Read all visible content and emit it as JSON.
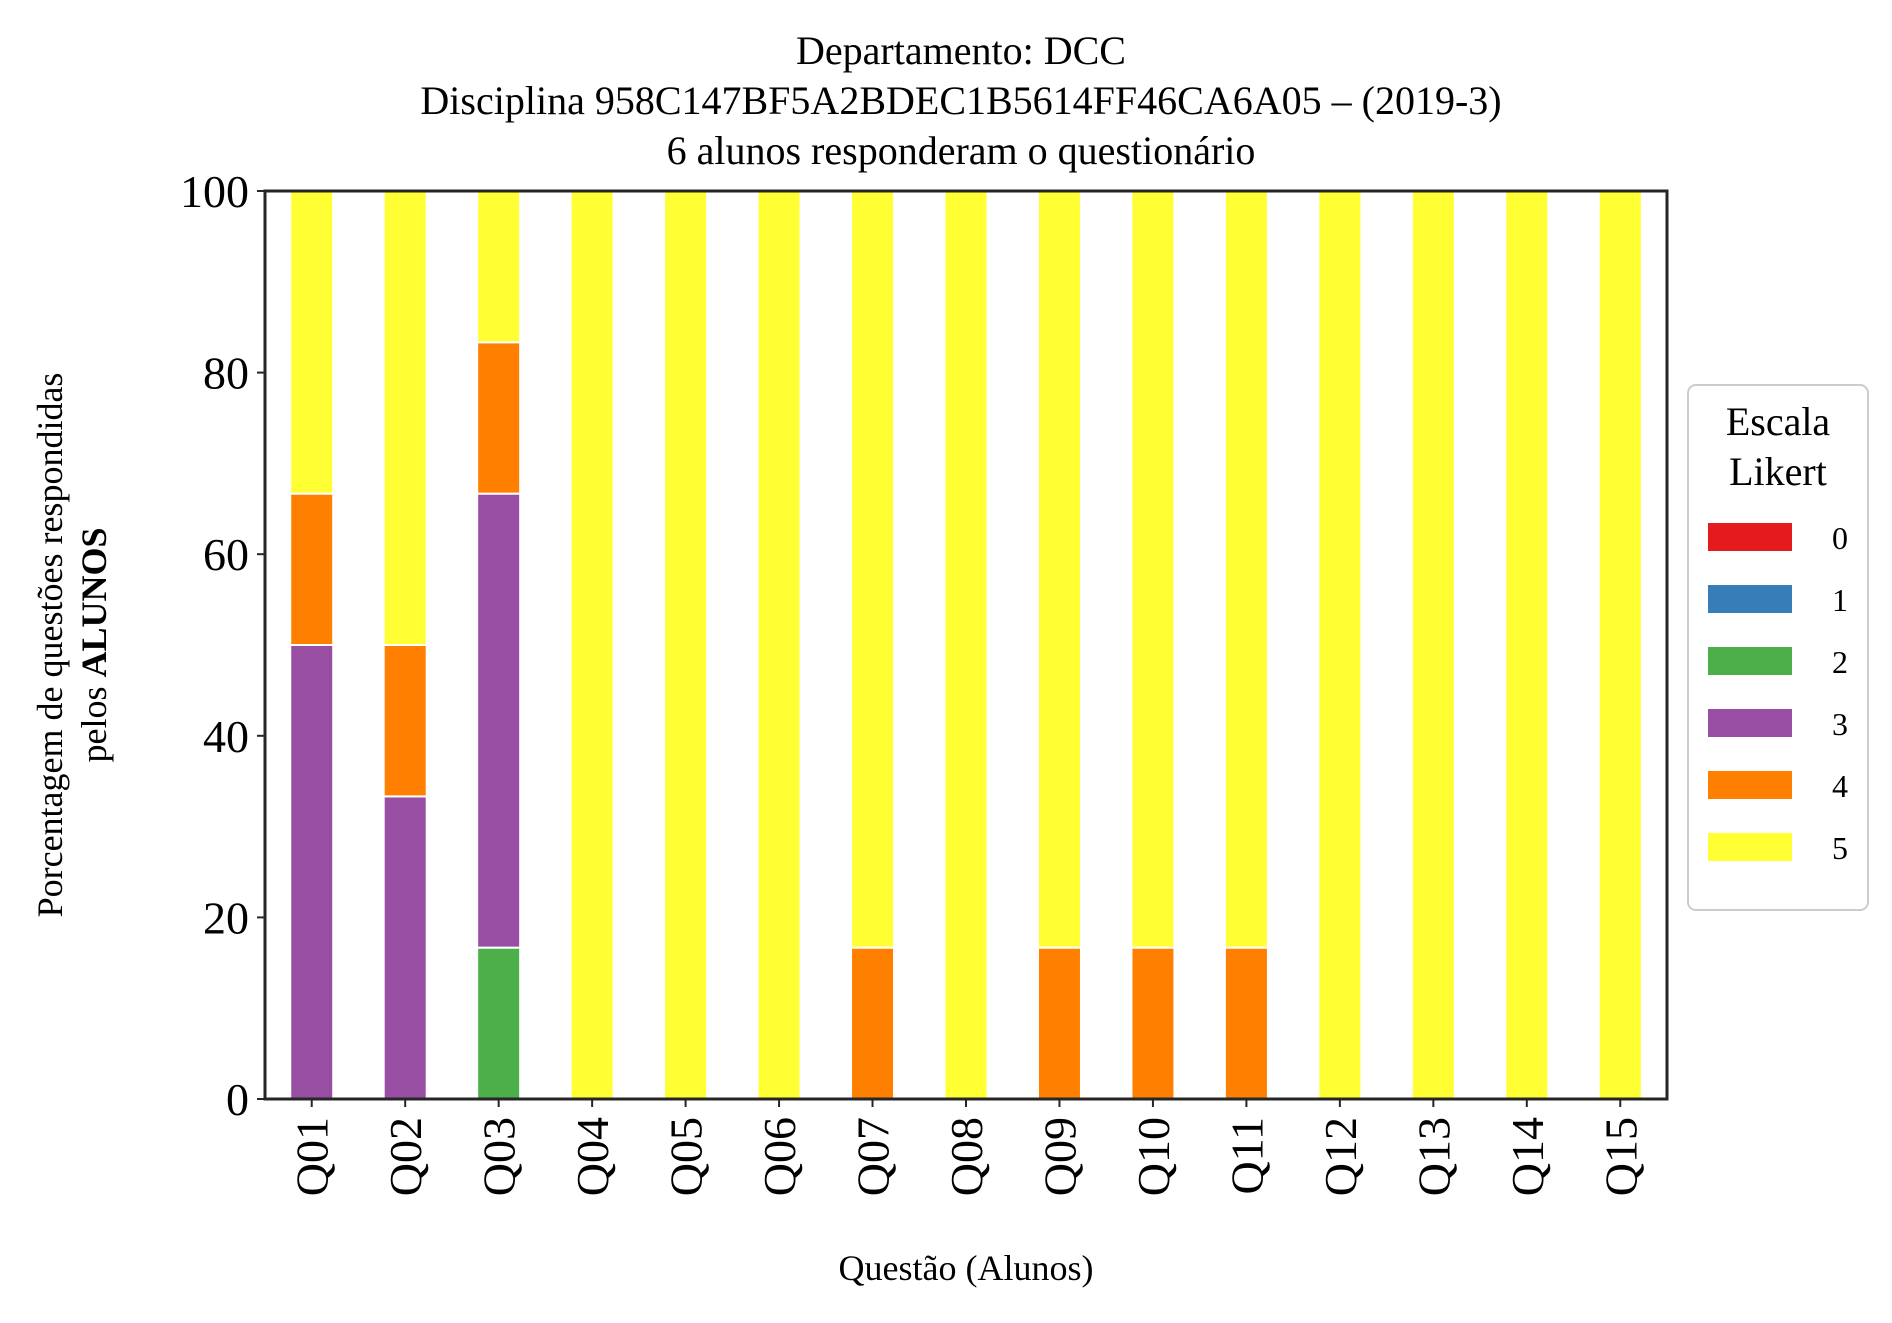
{
  "chart_data": {
    "type": "bar",
    "stacked": true,
    "title": [
      "Departamento: DCC",
      "Disciplina 958C147BF5A2BDEC1B5614FF46CA6A05 – (2019-3)",
      "6 alunos responderam o questionário"
    ],
    "xlabel": "Questão (Alunos)",
    "ylabel_line1": "Porcentagem de questões respondidas",
    "ylabel_line2_prefix": "pelos",
    "ylabel_line2_bold": "ALUNOS",
    "ylim": [
      0,
      100
    ],
    "yticks": [
      "0",
      "20",
      "40",
      "60",
      "80",
      "100"
    ],
    "categories": [
      "Q01",
      "Q02",
      "Q03",
      "Q04",
      "Q05",
      "Q06",
      "Q07",
      "Q08",
      "Q09",
      "Q10",
      "Q11",
      "Q12",
      "Q13",
      "Q14",
      "Q15"
    ],
    "legend_title": [
      "Escala",
      "Likert"
    ],
    "legend_position": "center-right",
    "grid": false,
    "series": [
      {
        "name": "0",
        "color": "#e41a1c",
        "values": [
          0,
          0,
          0,
          0,
          0,
          0,
          0,
          0,
          0,
          0,
          0,
          0,
          0,
          0,
          0
        ]
      },
      {
        "name": "1",
        "color": "#377eb8",
        "values": [
          0,
          0,
          0,
          0,
          0,
          0,
          0,
          0,
          0,
          0,
          0,
          0,
          0,
          0,
          0
        ]
      },
      {
        "name": "2",
        "color": "#4daf4a",
        "values": [
          0,
          0,
          16.67,
          0,
          0,
          0,
          0,
          0,
          0,
          0,
          0,
          0,
          0,
          0,
          0
        ]
      },
      {
        "name": "3",
        "color": "#984ea3",
        "values": [
          50,
          33.33,
          50,
          0,
          0,
          0,
          0,
          0,
          0,
          0,
          0,
          0,
          0,
          0,
          0
        ]
      },
      {
        "name": "4",
        "color": "#ff7f00",
        "values": [
          16.67,
          16.67,
          16.67,
          0,
          0,
          0,
          16.67,
          0,
          16.67,
          16.67,
          16.67,
          0,
          0,
          0,
          0
        ]
      },
      {
        "name": "5",
        "color": "#ffff33",
        "values": [
          33.33,
          50,
          16.67,
          100,
          100,
          100,
          83.33,
          100,
          83.33,
          83.33,
          83.33,
          100,
          100,
          100,
          100
        ]
      }
    ]
  }
}
